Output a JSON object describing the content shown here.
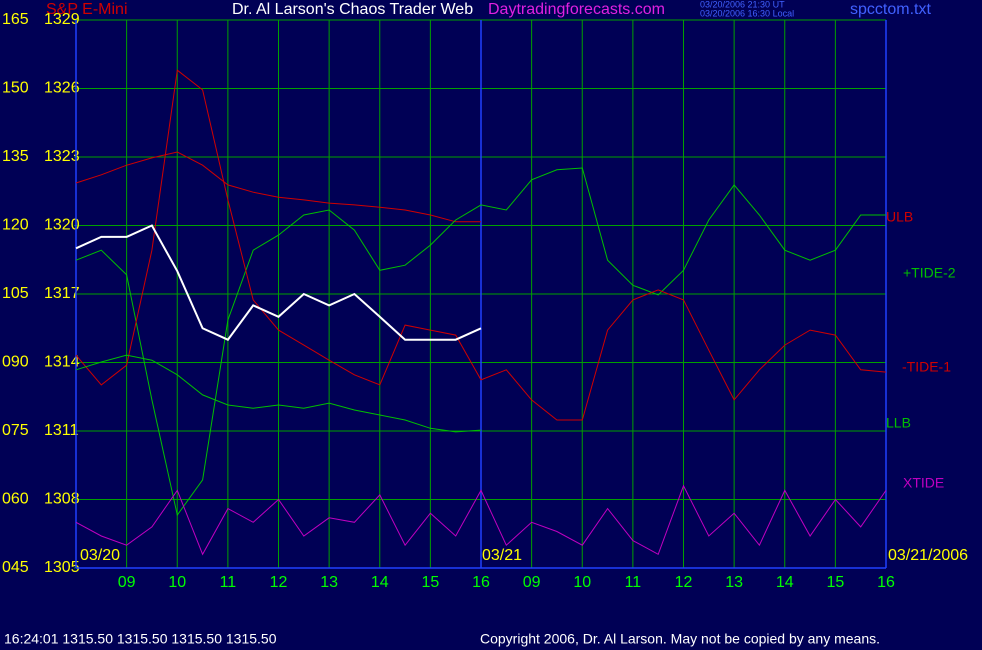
{
  "header": {
    "instrument": "S&P E-Mini",
    "title": "Dr. Al Larson's Chaos Trader Web",
    "site": "Daytradingforecasts.com",
    "times": [
      "03/20/2006 21:30 UT",
      "03/20/2006 16:30 Local"
    ],
    "file": "spcctom.txt"
  },
  "footer": {
    "status": "16:24:01  1315.50 1315.50 1315.50 1315.50",
    "copyright": "Copyright 2006, Dr. Al Larson. May not be copied by any means."
  },
  "chart_data": {
    "type": "line",
    "date_labels": [
      "03/20",
      "03/21",
      "03/21/2006"
    ],
    "x": [
      0,
      0.5,
      1,
      1.5,
      2,
      2.5,
      3,
      3.5,
      4,
      4.5,
      5,
      5.5,
      6,
      6.5,
      7,
      7.5,
      8,
      8.5,
      9,
      9.5,
      10,
      10.5,
      11,
      11.5,
      12,
      12.5,
      13,
      13.5,
      14,
      14.5,
      15,
      15.5,
      16
    ],
    "xlim": [
      0,
      16
    ],
    "xticks": [
      {
        "value": 1,
        "label": "09"
      },
      {
        "value": 2,
        "label": "10"
      },
      {
        "value": 3,
        "label": "11"
      },
      {
        "value": 4,
        "label": "12"
      },
      {
        "value": 5,
        "label": "13"
      },
      {
        "value": 6,
        "label": "14"
      },
      {
        "value": 7,
        "label": "15"
      },
      {
        "value": 8,
        "label": "16"
      },
      {
        "value": 9,
        "label": "09"
      },
      {
        "value": 10,
        "label": "10"
      },
      {
        "value": 11,
        "label": "11"
      },
      {
        "value": 12,
        "label": "12"
      },
      {
        "value": 13,
        "label": "13"
      },
      {
        "value": 14,
        "label": "14"
      },
      {
        "value": 15,
        "label": "15"
      },
      {
        "value": 16,
        "label": "16"
      }
    ],
    "ylim": [
      45,
      165
    ],
    "yticks": [
      165,
      150,
      135,
      120,
      105,
      {
        "value": 90,
        "label": "090"
      },
      {
        "value": 75,
        "label": "075"
      },
      {
        "value": 60,
        "label": "060"
      },
      {
        "value": 45,
        "label": "045"
      }
    ],
    "y2lim": [
      1305,
      1329
    ],
    "y2ticks": [
      1329,
      1326,
      1323,
      1320,
      1317,
      1314,
      1311,
      1308,
      1305
    ],
    "grid": true,
    "series": [
      {
        "name": "ULB",
        "color": "#d00000",
        "values": [
          129.3,
          131.1,
          133.2,
          134.8,
          136.1,
          133.2,
          128.9,
          127.3,
          126.2,
          125.6,
          124.9,
          124.5,
          124.0,
          123.4,
          122.3,
          120.8,
          120.8,
          null,
          null,
          null,
          null,
          null,
          null,
          null,
          null,
          null,
          null,
          null,
          null,
          null,
          null,
          null,
          null
        ]
      },
      {
        "name": "+TIDE-2",
        "color": "#00c000",
        "values": [
          112.4,
          114.6,
          109.2,
          81.8,
          56.6,
          64.3,
          99.3,
          114.6,
          117.9,
          122.3,
          123.4,
          119.0,
          110.2,
          111.3,
          115.7,
          121.2,
          124.5,
          123.4,
          130.0,
          132.2,
          132.6,
          112.4,
          106.9,
          104.8,
          110.2,
          121.2,
          128.9,
          122.3,
          114.6,
          112.4,
          114.6,
          122.3,
          122.3
        ]
      },
      {
        "name": "-TIDE-1",
        "color": "#d00000",
        "values": [
          91.6,
          85.1,
          89.4,
          114.6,
          154.0,
          149.7,
          125.6,
          103.7,
          97.1,
          93.8,
          90.5,
          87.3,
          85.1,
          98.2,
          97.1,
          96.0,
          86.2,
          88.4,
          81.8,
          77.4,
          77.4,
          97.1,
          103.7,
          105.9,
          103.7,
          92.7,
          81.8,
          88.4,
          93.8,
          97.1,
          96.0,
          88.4,
          87.9
        ]
      },
      {
        "name": "LLB",
        "color": "#00c000",
        "values": [
          88.4,
          90.1,
          91.6,
          90.5,
          87.3,
          82.9,
          80.7,
          80.0,
          80.7,
          80.0,
          81.1,
          79.6,
          78.5,
          77.4,
          75.6,
          74.8,
          75.2,
          null,
          null,
          null,
          null,
          null,
          null,
          null,
          null,
          null,
          null,
          null,
          null,
          null,
          null,
          null,
          null
        ]
      },
      {
        "name": "XTIDE",
        "color": "#c000c0",
        "values": [
          55,
          52,
          50,
          54,
          62,
          48,
          58,
          55,
          60,
          52,
          56,
          55,
          61,
          50,
          57,
          52,
          62,
          50,
          55,
          53,
          50,
          58,
          51,
          48,
          63,
          52,
          57,
          50,
          62,
          52,
          60,
          54,
          62
        ]
      },
      {
        "color": "#ffffff",
        "axis": "y2",
        "values": [
          1319,
          1319.5,
          1319.5,
          1320,
          1318,
          1315.5,
          1315,
          1316.5,
          1316,
          1317,
          1316.5,
          1317,
          1316,
          1315,
          1315,
          1315,
          1315.5,
          null,
          null,
          null,
          null,
          null,
          null,
          null,
          null,
          null,
          null,
          null,
          null,
          null,
          null,
          null,
          null
        ]
      }
    ]
  }
}
